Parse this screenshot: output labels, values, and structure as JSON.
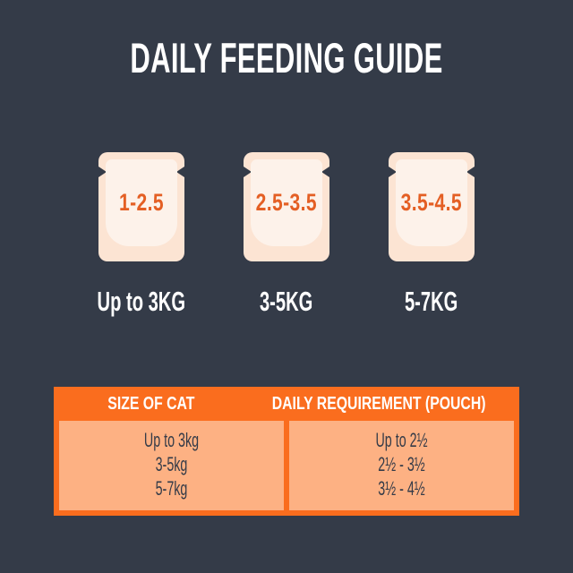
{
  "title": "DAILY FEEDING GUIDE",
  "colors": {
    "background": "#343b48",
    "brand_orange": "#fa6d1e",
    "amount_text_orange": "#e45f24",
    "pouch_outer": "#fce4d3",
    "pouch_inner": "#fdf2ea",
    "table_cell_peach": "#fdb183",
    "text_dark": "#343b48",
    "text_white": "#ffffff"
  },
  "pouches": [
    {
      "amount": "1-2.5",
      "weight_label": "Up to 3KG"
    },
    {
      "amount": "2.5-3.5",
      "weight_label": "3-5KG"
    },
    {
      "amount": "3.5-4.5",
      "weight_label": "5-7KG"
    }
  ],
  "table": {
    "headers": {
      "size": "SIZE OF CAT",
      "requirement": "DAILY REQUIREMENT (POUCH)"
    },
    "rows": [
      {
        "size": "Up to 3kg",
        "requirement": "Up to 2½"
      },
      {
        "size": "3-5kg",
        "requirement": "2½ - 3½"
      },
      {
        "size": "5-7kg",
        "requirement": "3½ - 4½"
      }
    ]
  }
}
